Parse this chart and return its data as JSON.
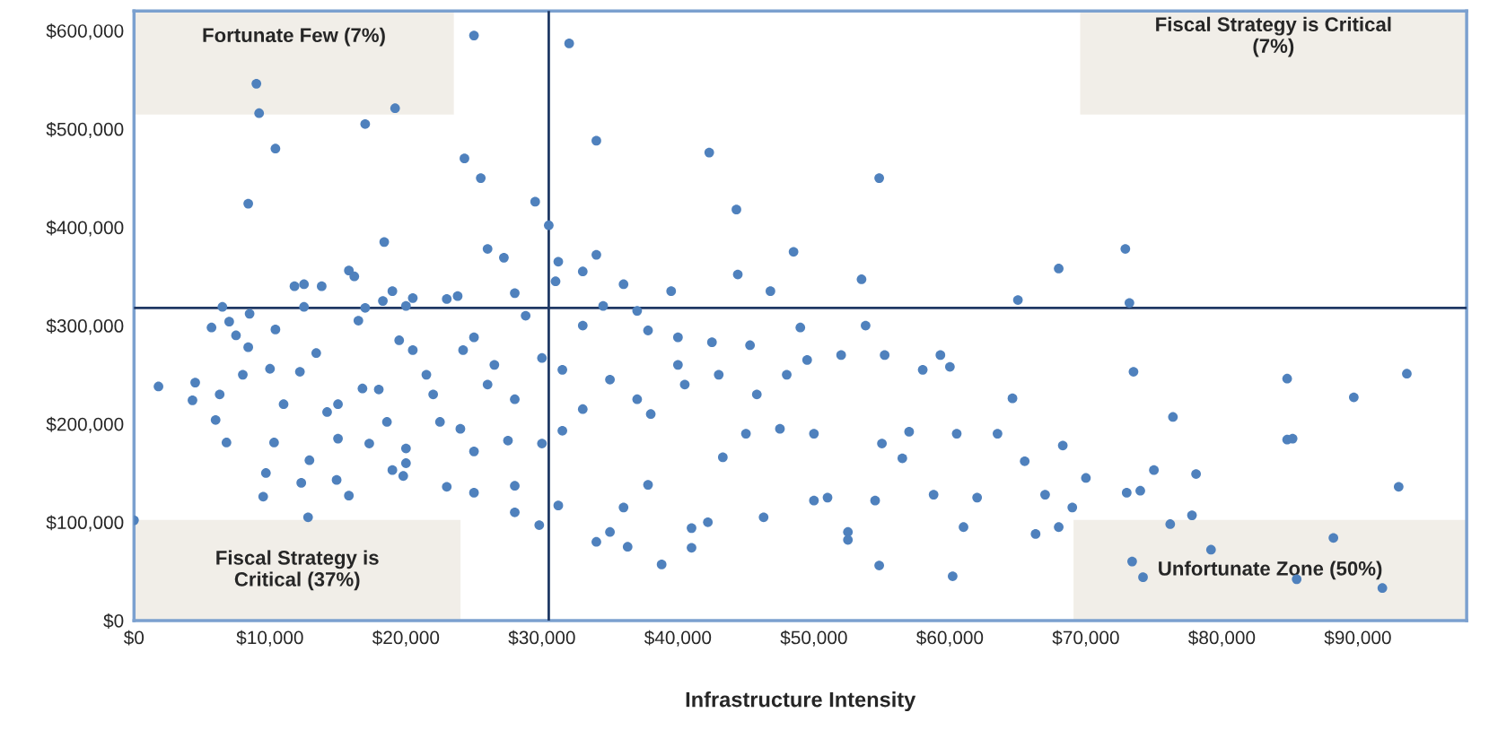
{
  "chart_data": {
    "type": "scatter",
    "xlabel": "Infrastructure Intensity",
    "xlim": [
      0,
      98000
    ],
    "ylim": [
      0,
      620000
    ],
    "xticks": [
      {
        "value": 0,
        "label": "$0"
      },
      {
        "value": 10000,
        "label": "$10,000"
      },
      {
        "value": 20000,
        "label": "$20,000"
      },
      {
        "value": 30000,
        "label": "$30,000"
      },
      {
        "value": 40000,
        "label": "$40,000"
      },
      {
        "value": 50000,
        "label": "$50,000"
      },
      {
        "value": 60000,
        "label": "$60,000"
      },
      {
        "value": 70000,
        "label": "$70,000"
      },
      {
        "value": 80000,
        "label": "$80,000"
      },
      {
        "value": 90000,
        "label": "$90,000"
      }
    ],
    "yticks": [
      {
        "value": 0,
        "label": "$0"
      },
      {
        "value": 100000,
        "label": "$100,000"
      },
      {
        "value": 200000,
        "label": "$200,000"
      },
      {
        "value": 300000,
        "label": "$300,000"
      },
      {
        "value": 400000,
        "label": "$400,000"
      },
      {
        "value": 500000,
        "label": "$500,000"
      },
      {
        "value": 600000,
        "label": "$600,000"
      }
    ],
    "grid": false,
    "marker": "circle",
    "ref_lines": [
      {
        "axis": "x",
        "value": 30500,
        "color": "#1f3864"
      },
      {
        "axis": "y",
        "value": 318000,
        "color": "#1f3864"
      }
    ],
    "annotations": [
      "Fortunate Few (7%)",
      "Fiscal Strategy is Critical\n(7%)",
      "Fiscal Strategy is\nCritical (37%)",
      "Unfortunate Zone (50%)"
    ],
    "series": [
      {
        "color": "#4f81bd",
        "x": [
          0,
          1800,
          4500,
          4300,
          5700,
          6500,
          7000,
          6300,
          6800,
          6000,
          7500,
          8000,
          8400,
          8500,
          8400,
          9000,
          9200,
          10400,
          10400,
          10000,
          9700,
          9500,
          10300,
          11000,
          11800,
          12200,
          12500,
          12500,
          12300,
          12800,
          12900,
          13400,
          13800,
          14200,
          15000,
          14900,
          15800,
          15800,
          16200,
          16500,
          16800,
          17000,
          17300,
          17000,
          18400,
          18300,
          18600,
          19000,
          19200,
          19500,
          19000,
          19800,
          20000,
          20500,
          20000,
          20500,
          21500,
          22500,
          23000,
          23000,
          23800,
          24300,
          24200,
          25000,
          25500,
          25000,
          25000,
          25000,
          26000,
          26500,
          27200,
          27500,
          28000,
          28000,
          28000,
          28800,
          29500,
          29800,
          30000,
          30500,
          31000,
          31200,
          31200,
          31500,
          31500,
          32000,
          33000,
          33000,
          34000,
          34000,
          34000,
          35000,
          34500,
          36000,
          36300,
          36000,
          37000,
          37800,
          37800,
          38800,
          39500,
          40000,
          40500,
          41000,
          41000,
          42300,
          42200,
          42500,
          43300,
          44300,
          44400,
          45300,
          45800,
          46300,
          46800,
          47500,
          48500,
          49000,
          49500,
          50000,
          50000,
          51000,
          52000,
          52500,
          52500,
          53500,
          53800,
          54800,
          54500,
          54800,
          55200,
          56500,
          57000,
          58000,
          58800,
          59300,
          60200,
          60500,
          61000,
          62000,
          63500,
          65000,
          64600,
          65500,
          66300,
          67000,
          68000,
          68000,
          68300,
          69000,
          70000,
          72900,
          73200,
          73000,
          73500,
          73400,
          74000,
          75000,
          76400,
          76200,
          77800,
          78100,
          79200,
          84800,
          84800,
          85200,
          88200,
          89700,
          91800,
          93000,
          93600,
          74200,
          85500,
          22000,
          26000,
          30000,
          35000,
          38000,
          43000,
          48000,
          55000,
          60000,
          33000,
          37000,
          40000,
          45000,
          20000,
          15000,
          18000,
          28000,
          24000
        ],
        "values": [
          102000,
          238000,
          242000,
          224000,
          298000,
          319000,
          304000,
          230000,
          181000,
          204000,
          290000,
          250000,
          278000,
          312000,
          424000,
          546000,
          516000,
          480000,
          296000,
          256000,
          150000,
          126000,
          181000,
          220000,
          340000,
          253000,
          342000,
          319000,
          140000,
          105000,
          163000,
          272000,
          340000,
          212000,
          185000,
          143000,
          127000,
          356000,
          350000,
          305000,
          236000,
          505000,
          180000,
          318000,
          385000,
          325000,
          202000,
          335000,
          521000,
          285000,
          153000,
          147000,
          320000,
          328000,
          160000,
          275000,
          250000,
          202000,
          327000,
          136000,
          330000,
          470000,
          275000,
          595000,
          450000,
          288000,
          130000,
          172000,
          378000,
          260000,
          369000,
          183000,
          333000,
          110000,
          137000,
          310000,
          426000,
          97000,
          267000,
          402000,
          345000,
          365000,
          117000,
          255000,
          193000,
          587000,
          355000,
          300000,
          488000,
          372000,
          80000,
          90000,
          320000,
          342000,
          75000,
          115000,
          315000,
          295000,
          138000,
          57000,
          335000,
          288000,
          240000,
          74000,
          94000,
          476000,
          100000,
          283000,
          166000,
          418000,
          352000,
          280000,
          230000,
          105000,
          335000,
          195000,
          375000,
          298000,
          265000,
          122000,
          190000,
          125000,
          270000,
          90000,
          82000,
          347000,
          300000,
          450000,
          122000,
          56000,
          270000,
          165000,
          192000,
          255000,
          128000,
          270000,
          45000,
          190000,
          95000,
          125000,
          190000,
          326000,
          226000,
          162000,
          88000,
          128000,
          358000,
          95000,
          178000,
          115000,
          145000,
          378000,
          323000,
          130000,
          253000,
          60000,
          132000,
          153000,
          207000,
          98000,
          107000,
          149000,
          72000,
          246000,
          184000,
          185000,
          84000,
          227000,
          33000,
          136000,
          251000,
          44000,
          42000,
          230000,
          240000,
          180000,
          245000,
          210000,
          250000,
          250000,
          180000,
          258000,
          215000,
          225000,
          260000,
          190000,
          175000,
          220000,
          235000,
          225000,
          195000
        ]
      }
    ]
  }
}
